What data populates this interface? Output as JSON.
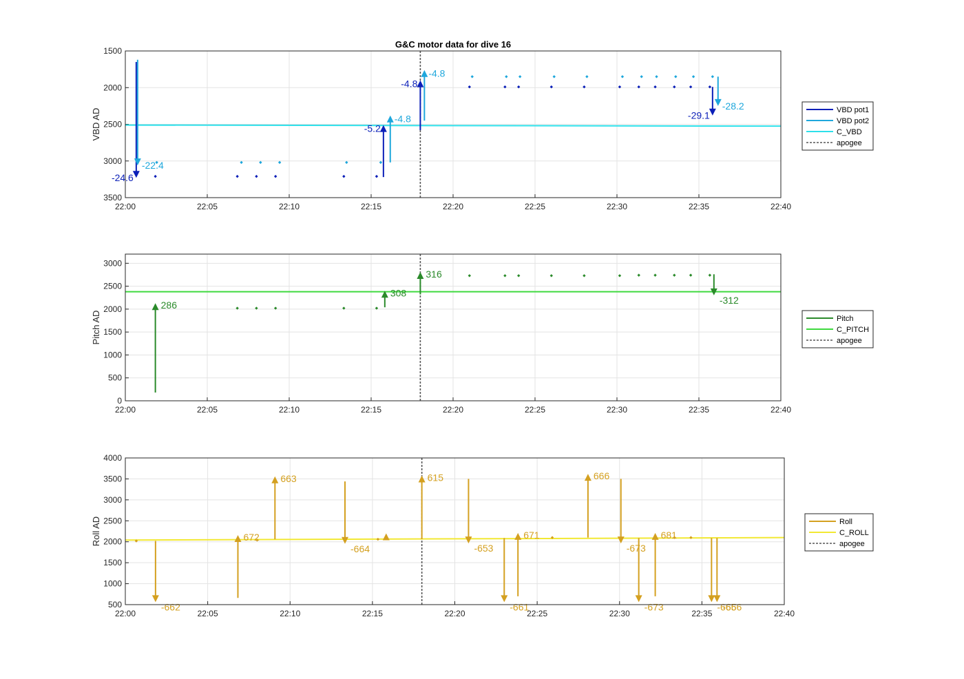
{
  "figure": {
    "title": "G&C motor data for dive 16"
  },
  "chart_data": [
    {
      "type": "scatter",
      "panel": "vbd",
      "ylabel": "VBD AD",
      "xlabel": "",
      "x_unit": "HH:MM",
      "xlim": [
        "22:00",
        "22:40"
      ],
      "x_ticks": [
        "22:00",
        "22:05",
        "22:10",
        "22:15",
        "22:20",
        "22:25",
        "22:30",
        "22:35",
        "22:40"
      ],
      "ylim": [
        1500,
        3500
      ],
      "y_ticks": [
        "1500",
        "2000",
        "2500",
        "3000",
        "3500"
      ],
      "y_reversed": true,
      "grid": true,
      "legend_placement": "outside-right",
      "legend": [
        "VBD pot1",
        "VBD pot2",
        "C_VBD",
        "apogee"
      ],
      "colors": {
        "pot1": "#0b1fb8",
        "pot2": "#1ea7dc",
        "center": "#2de0ea",
        "apogee": "#555555"
      },
      "apogee": "22:18",
      "reference_lines": [
        {
          "name": "C_VBD",
          "y_start": 2510,
          "y_end": 2525
        }
      ],
      "series": [
        {
          "name": "VBD pot1",
          "x": [
            "22:01:50",
            "22:06:50",
            "22:08:00",
            "22:09:10",
            "22:13:20",
            "22:15:20",
            "22:21:00",
            "22:23:10",
            "22:24:00",
            "22:26:00",
            "22:28:00",
            "22:30:10",
            "22:31:20",
            "22:32:20",
            "22:33:30",
            "22:34:30",
            "22:35:40"
          ],
          "y": [
            3210,
            3210,
            3210,
            3210,
            3210,
            3210,
            1990,
            1990,
            1990,
            1990,
            1990,
            1990,
            1990,
            1990,
            1990,
            1990,
            1990
          ]
        },
        {
          "name": "VBD pot2",
          "x": [
            "22:01:55",
            "22:07:05",
            "22:08:15",
            "22:09:25",
            "22:13:30",
            "22:15:35",
            "22:21:10",
            "22:23:15",
            "22:24:05",
            "22:26:10",
            "22:28:10",
            "22:30:20",
            "22:31:30",
            "22:32:25",
            "22:33:35",
            "22:34:40",
            "22:35:50"
          ],
          "y": [
            3020,
            3020,
            3020,
            3020,
            3020,
            3020,
            1850,
            1850,
            1850,
            1850,
            1850,
            1850,
            1850,
            1850,
            1850,
            1850,
            1850
          ]
        }
      ],
      "moves": [
        {
          "series": "VBD pot1",
          "x": "22:00:40",
          "y_from": 1650,
          "y_to": 3230,
          "label": "-24.6"
        },
        {
          "series": "VBD pot2",
          "x": "22:00:45",
          "y_from": 1620,
          "y_to": 3060,
          "label": "-22.4"
        },
        {
          "series": "VBD pot1",
          "x": "22:15:45",
          "y_from": 3220,
          "y_to": 2510,
          "label": "-5.2"
        },
        {
          "series": "VBD pot2",
          "x": "22:16:10",
          "y_from": 3020,
          "y_to": 2380,
          "label": "-4.8"
        },
        {
          "series": "VBD pot1",
          "x": "22:18:00",
          "y_from": 2580,
          "y_to": 1900,
          "label": "-4.8"
        },
        {
          "series": "VBD pot2",
          "x": "22:18:15",
          "y_from": 2450,
          "y_to": 1760,
          "label": "-4.8"
        },
        {
          "series": "VBD pot1",
          "x": "22:35:50",
          "y_from": 1990,
          "y_to": 2380,
          "label": "-29.1"
        },
        {
          "series": "VBD pot2",
          "x": "22:36:10",
          "y_from": 1850,
          "y_to": 2250,
          "label": "-28.2"
        }
      ]
    },
    {
      "type": "scatter",
      "panel": "pitch",
      "ylabel": "Pitch AD",
      "xlabel": "",
      "x_unit": "HH:MM",
      "xlim": [
        "22:00",
        "22:40"
      ],
      "x_ticks": [
        "22:00",
        "22:05",
        "22:10",
        "22:15",
        "22:20",
        "22:25",
        "22:30",
        "22:35",
        "22:40"
      ],
      "ylim": [
        0,
        3200
      ],
      "y_ticks": [
        "0",
        "500",
        "1000",
        "1500",
        "2000",
        "2500",
        "3000"
      ],
      "grid": true,
      "legend_placement": "outside-right",
      "legend": [
        "Pitch",
        "C_PITCH",
        "apogee"
      ],
      "colors": {
        "pitch": "#2a8a2a",
        "center": "#3ed93e",
        "apogee": "#555555"
      },
      "apogee": "22:18",
      "reference_lines": [
        {
          "name": "C_PITCH",
          "y_start": 2380,
          "y_end": 2380
        }
      ],
      "series": [
        {
          "name": "Pitch",
          "x": [
            "22:06:50",
            "22:08:00",
            "22:09:10",
            "22:13:20",
            "22:15:20",
            "22:21:00",
            "22:23:10",
            "22:24:00",
            "22:26:00",
            "22:28:00",
            "22:30:10",
            "22:31:20",
            "22:32:20",
            "22:33:30",
            "22:34:30",
            "22:35:40"
          ],
          "y": [
            2020,
            2020,
            2020,
            2020,
            2020,
            2730,
            2730,
            2730,
            2730,
            2730,
            2730,
            2740,
            2740,
            2740,
            2740,
            2740
          ]
        }
      ],
      "moves": [
        {
          "series": "Pitch",
          "x": "22:01:50",
          "y_from": 180,
          "y_to": 2130,
          "label": "286"
        },
        {
          "series": "Pitch",
          "x": "22:15:50",
          "y_from": 2040,
          "y_to": 2400,
          "label": "308"
        },
        {
          "series": "Pitch",
          "x": "22:18:00",
          "y_from": 2320,
          "y_to": 2810,
          "label": "316"
        },
        {
          "series": "Pitch",
          "x": "22:35:55",
          "y_from": 2760,
          "y_to": 2300,
          "label": "-312"
        }
      ]
    },
    {
      "type": "scatter",
      "panel": "roll",
      "ylabel": "Roll AD",
      "xlabel": "",
      "x_unit": "HH:MM",
      "xlim": [
        "22:00",
        "22:40"
      ],
      "x_ticks": [
        "22:00",
        "22:05",
        "22:10",
        "22:15",
        "22:20",
        "22:25",
        "22:30",
        "22:35",
        "22:40"
      ],
      "ylim": [
        500,
        4000
      ],
      "y_ticks": [
        "500",
        "1000",
        "1500",
        "2000",
        "2500",
        "3000",
        "3500",
        "4000"
      ],
      "grid": true,
      "legend_placement": "outside-right",
      "legend": [
        "Roll",
        "C_ROLL",
        "apogee"
      ],
      "colors": {
        "roll": "#d4a020",
        "center": "#f2e832",
        "apogee": "#555555"
      },
      "apogee": "22:18",
      "reference_lines": [
        {
          "name": "C_ROLL",
          "y_start": 2040,
          "y_end": 2100
        }
      ],
      "series": [
        {
          "name": "Roll",
          "x": [
            "22:00:40",
            "22:08:00",
            "22:15:20",
            "22:25:55",
            "22:33:20",
            "22:34:20"
          ],
          "y": [
            2020,
            2040,
            2060,
            2100,
            2100,
            2100
          ]
        }
      ],
      "moves": [
        {
          "series": "Roll",
          "x": "22:01:50",
          "y_from": 2020,
          "y_to": 560,
          "label": "-662"
        },
        {
          "series": "Roll",
          "x": "22:06:50",
          "y_from": 660,
          "y_to": 2160,
          "label": "672"
        },
        {
          "series": "Roll",
          "x": "22:09:05",
          "y_from": 2060,
          "y_to": 3560,
          "label": "663"
        },
        {
          "series": "Roll",
          "x": "22:13:20",
          "y_from": 3440,
          "y_to": 1950,
          "label": "-664"
        },
        {
          "series": "Roll",
          "x": "22:15:50",
          "y_from": 2060,
          "y_to": 2200,
          "label": ""
        },
        {
          "series": "Roll",
          "x": "22:18:00",
          "y_from": 2060,
          "y_to": 3580,
          "label": "615"
        },
        {
          "series": "Roll",
          "x": "22:20:50",
          "y_from": 3500,
          "y_to": 1960,
          "label": "-653"
        },
        {
          "series": "Roll",
          "x": "22:23:00",
          "y_from": 2090,
          "y_to": 560,
          "label": "-661"
        },
        {
          "series": "Roll",
          "x": "22:23:50",
          "y_from": 700,
          "y_to": 2210,
          "label": "671"
        },
        {
          "series": "Roll",
          "x": "22:28:05",
          "y_from": 2100,
          "y_to": 3620,
          "label": "666"
        },
        {
          "series": "Roll",
          "x": "22:30:05",
          "y_from": 3500,
          "y_to": 1960,
          "label": "-673"
        },
        {
          "series": "Roll",
          "x": "22:31:10",
          "y_from": 2090,
          "y_to": 560,
          "label": "-673"
        },
        {
          "series": "Roll",
          "x": "22:32:10",
          "y_from": 700,
          "y_to": 2210,
          "label": "681"
        },
        {
          "series": "Roll",
          "x": "22:35:35",
          "y_from": 2090,
          "y_to": 560,
          "label": "-665"
        },
        {
          "series": "Roll",
          "x": "22:35:55",
          "y_from": 2090,
          "y_to": 560,
          "label": "-666"
        }
      ]
    }
  ]
}
